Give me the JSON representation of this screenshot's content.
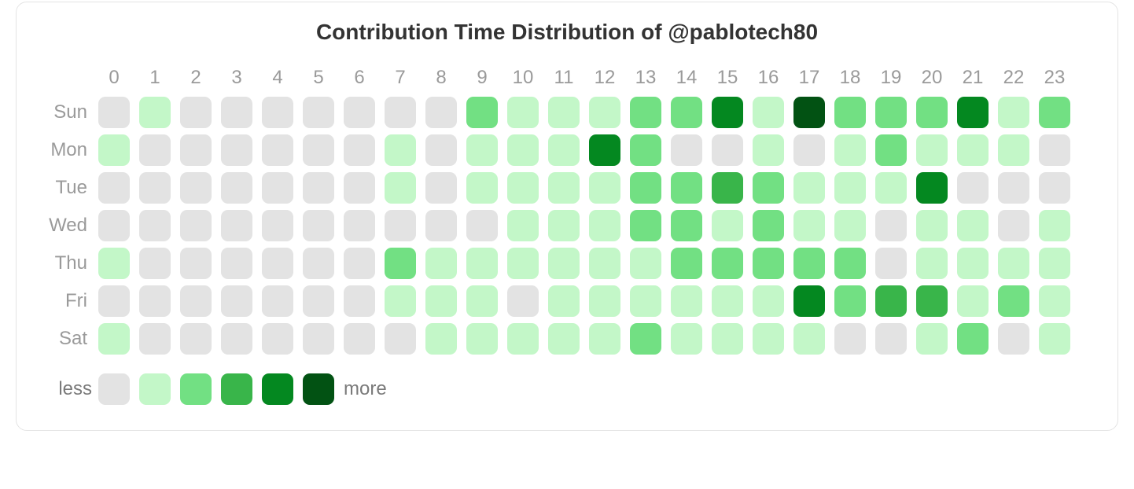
{
  "title": "Contribution Time Distribution of @pablotech80",
  "title_fontsize": 28,
  "title_color": "#333333",
  "card_border_color": "#e4e4e4",
  "card_border_radius": 14,
  "background_color": "#ffffff",
  "label_color": "#9a9a9a",
  "label_fontsize": 24,
  "hours": [
    "0",
    "1",
    "2",
    "3",
    "4",
    "5",
    "6",
    "7",
    "8",
    "9",
    "10",
    "11",
    "12",
    "13",
    "14",
    "15",
    "16",
    "17",
    "18",
    "19",
    "20",
    "21",
    "22",
    "23"
  ],
  "days": [
    "Sun",
    "Mon",
    "Tue",
    "Wed",
    "Thu",
    "Fri",
    "Sat"
  ],
  "cell_size": 40,
  "cell_radius": 9,
  "cell_gap": 12,
  "palette": [
    "#e3e3e3",
    "#c3f7c8",
    "#72e083",
    "#39b54a",
    "#048820",
    "#025213"
  ],
  "grid": [
    [
      0,
      1,
      0,
      0,
      0,
      0,
      0,
      0,
      0,
      2,
      1,
      1,
      1,
      2,
      2,
      4,
      1,
      5,
      2,
      2,
      2,
      4,
      1,
      2
    ],
    [
      1,
      0,
      0,
      0,
      0,
      0,
      0,
      1,
      0,
      1,
      1,
      1,
      4,
      2,
      0,
      0,
      1,
      0,
      1,
      2,
      1,
      1,
      1,
      0
    ],
    [
      0,
      0,
      0,
      0,
      0,
      0,
      0,
      1,
      0,
      1,
      1,
      1,
      1,
      2,
      2,
      3,
      2,
      1,
      1,
      1,
      4,
      0,
      0,
      0
    ],
    [
      0,
      0,
      0,
      0,
      0,
      0,
      0,
      0,
      0,
      0,
      1,
      1,
      1,
      2,
      2,
      1,
      2,
      1,
      1,
      0,
      1,
      1,
      0,
      1
    ],
    [
      1,
      0,
      0,
      0,
      0,
      0,
      0,
      2,
      1,
      1,
      1,
      1,
      1,
      1,
      2,
      2,
      2,
      2,
      2,
      0,
      1,
      1,
      1,
      1
    ],
    [
      0,
      0,
      0,
      0,
      0,
      0,
      0,
      1,
      1,
      1,
      0,
      1,
      1,
      1,
      1,
      1,
      1,
      4,
      2,
      3,
      3,
      1,
      2,
      1
    ],
    [
      1,
      0,
      0,
      0,
      0,
      0,
      0,
      0,
      1,
      1,
      1,
      1,
      1,
      2,
      1,
      1,
      1,
      1,
      0,
      0,
      1,
      2,
      0,
      1
    ]
  ],
  "legend": {
    "less": "less",
    "more": "more",
    "levels": [
      0,
      1,
      2,
      3,
      4,
      5
    ]
  }
}
